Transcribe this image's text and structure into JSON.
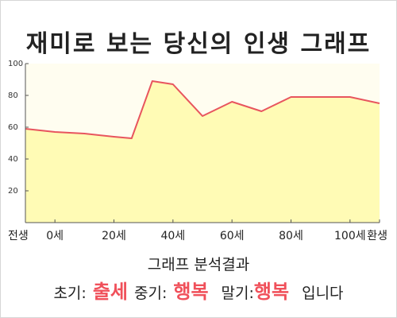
{
  "title": "재미로 보는 당신의 인생 그래프",
  "analysis": {
    "heading": "그래프 분석결과",
    "early_label": "초기:",
    "early_value": "출세",
    "middle_label": "중기:",
    "middle_value": "행복",
    "late_label": "말기:",
    "late_value": "행복",
    "suffix": "입니다"
  },
  "colors": {
    "line": "#e8555e",
    "area": "#fffbb5",
    "plot_background": "#fffdf0",
    "highlight": "#f0505a"
  },
  "chart_data": {
    "type": "area",
    "title": "",
    "xlabel": "",
    "ylabel": "",
    "xlim": [
      -10,
      110
    ],
    "ylim": [
      0,
      100
    ],
    "x_ticks": [
      {
        "x": -10,
        "label": "전생"
      },
      {
        "x": 0,
        "label": "0세"
      },
      {
        "x": 20,
        "label": "20세"
      },
      {
        "x": 40,
        "label": "40세"
      },
      {
        "x": 60,
        "label": "60세"
      },
      {
        "x": 80,
        "label": "80세"
      },
      {
        "x": 100,
        "label": "100세"
      },
      {
        "x": 110,
        "label": "환생"
      }
    ],
    "y_ticks": [
      20,
      40,
      60,
      80,
      100
    ],
    "grid": false,
    "series": [
      {
        "x": [
          -10,
          0,
          10,
          20,
          26,
          33,
          40,
          50,
          60,
          70,
          80,
          90,
          100,
          110
        ],
        "y": [
          59,
          57,
          56,
          54,
          53,
          89,
          87,
          67,
          76,
          70,
          79,
          79,
          79,
          75
        ]
      }
    ]
  }
}
